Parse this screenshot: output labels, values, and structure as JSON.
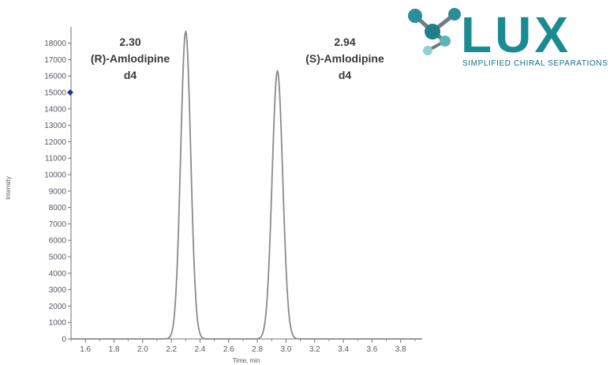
{
  "brand": {
    "name": "LUX",
    "tagline": "SIMPLIFIED CHIRAL SEPARATIONS",
    "color": "#1a8a93",
    "accent": "#0f6f7a",
    "icon": "molecule-icon"
  },
  "chart_data": {
    "type": "line",
    "xlabel": "Time, min",
    "ylabel": "Intensity",
    "xlim": [
      1.5,
      3.95
    ],
    "ylim": [
      0,
      18800
    ],
    "xticks": [
      1.6,
      1.8,
      2.0,
      2.2,
      2.4,
      2.6,
      2.8,
      3.0,
      3.2,
      3.4,
      3.6,
      3.8
    ],
    "xtick_labels": [
      "1.6",
      "1.8",
      "2.0",
      "2.2",
      "2.4",
      "2.6",
      "2.8",
      "3.0",
      "3.2",
      "3.4",
      "3.6",
      "3.8"
    ],
    "yticks": [
      0,
      1000,
      2000,
      3000,
      4000,
      5000,
      6000,
      7000,
      8000,
      9000,
      10000,
      11000,
      12000,
      13000,
      14000,
      15000,
      16000,
      17000,
      18000
    ],
    "ytick_labels": [
      "0",
      "1000",
      "2000",
      "3000",
      "4000",
      "5000",
      "6000",
      "7000",
      "8000",
      "9000",
      "10000",
      "11000",
      "12000",
      "13000",
      "14000",
      "15000",
      "16000",
      "17000",
      "18000"
    ],
    "grid": false,
    "line_color": "#8a8a8a",
    "marker": {
      "y": 15000,
      "color": "#1f3a8a"
    },
    "peaks": [
      {
        "time": "2.30",
        "name": "(R)-Amlodipine",
        "suffix": "d4",
        "x": 2.3,
        "height": 18700,
        "sigma": 0.035
      },
      {
        "time": "2.94",
        "name": "(S)-Amlodipine",
        "suffix": "d4",
        "x": 2.94,
        "height": 16300,
        "sigma": 0.037
      }
    ]
  }
}
